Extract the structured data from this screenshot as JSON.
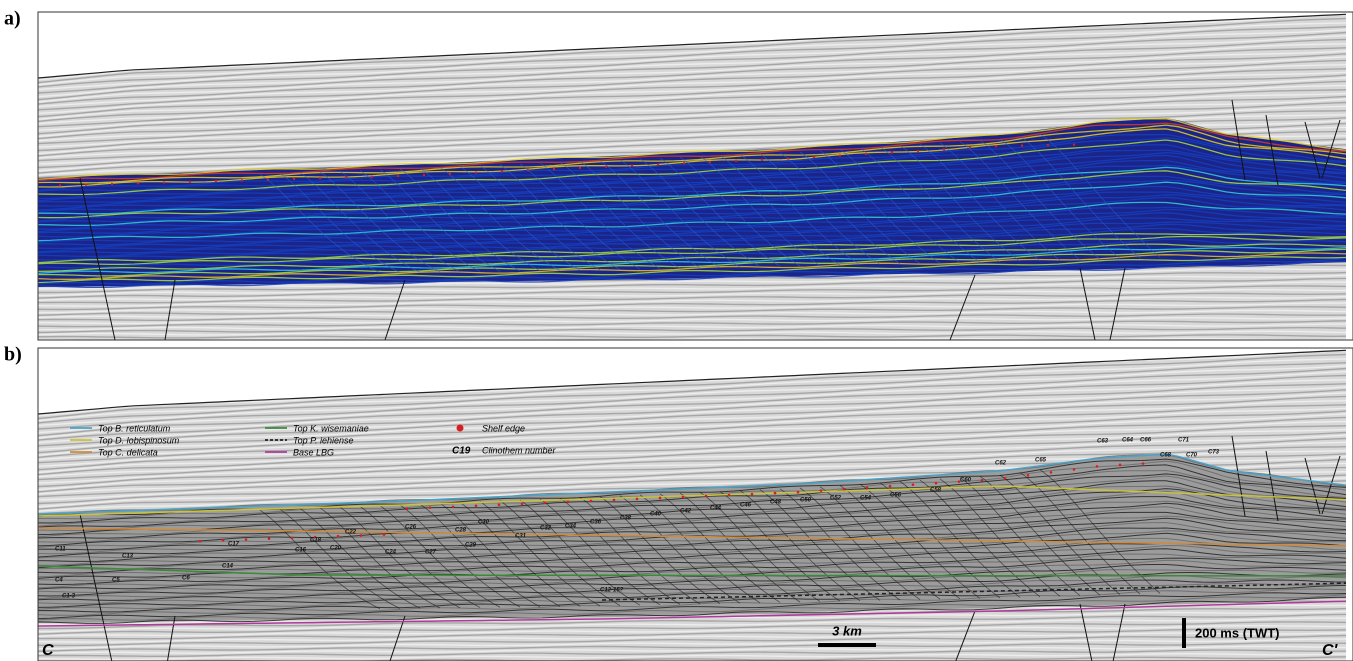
{
  "panel_a": {
    "label": "a)"
  },
  "panel_b": {
    "label": "b)",
    "legend": [
      {
        "label": "Top B. reticulatum",
        "color": "#4aa3c7",
        "style": "solid"
      },
      {
        "label": "Top D. lobispinosum",
        "color": "#c9c23a",
        "style": "solid"
      },
      {
        "label": "Top C. delicata",
        "color": "#d08a3a",
        "style": "solid"
      },
      {
        "label": "Top K. wisemaniae",
        "color": "#3a8a3a",
        "style": "solid"
      },
      {
        "label": "Top P. iehiense",
        "color": "#222222",
        "style": "dashed"
      },
      {
        "label": "Base LBG",
        "color": "#b03a9a",
        "style": "solid"
      }
    ],
    "shelf_edge": {
      "label": "Shelf edge",
      "color": "#d62020"
    },
    "clinothem_key": {
      "example": "C19",
      "label": "Clinothem number"
    },
    "section_start": "C",
    "section_end": "C'",
    "scale_horizontal": "3 km",
    "scale_vertical": "200 ms (TWT)",
    "clinothems": [
      "C11",
      "C13",
      "C17",
      "C14",
      "C4",
      "C5",
      "C6",
      "C1-3",
      "C16",
      "C18",
      "C20",
      "C22",
      "C24",
      "C26",
      "C27",
      "C28",
      "C29",
      "C30",
      "C31",
      "C32",
      "C34",
      "C36",
      "C38",
      "C40",
      "C42",
      "C44",
      "C46",
      "C48",
      "C50",
      "C52",
      "C54",
      "C56",
      "C58",
      "C60",
      "C62",
      "C63",
      "C64",
      "C65",
      "C66",
      "C68",
      "C70",
      "C71",
      "C73",
      "C12-15?"
    ]
  }
}
